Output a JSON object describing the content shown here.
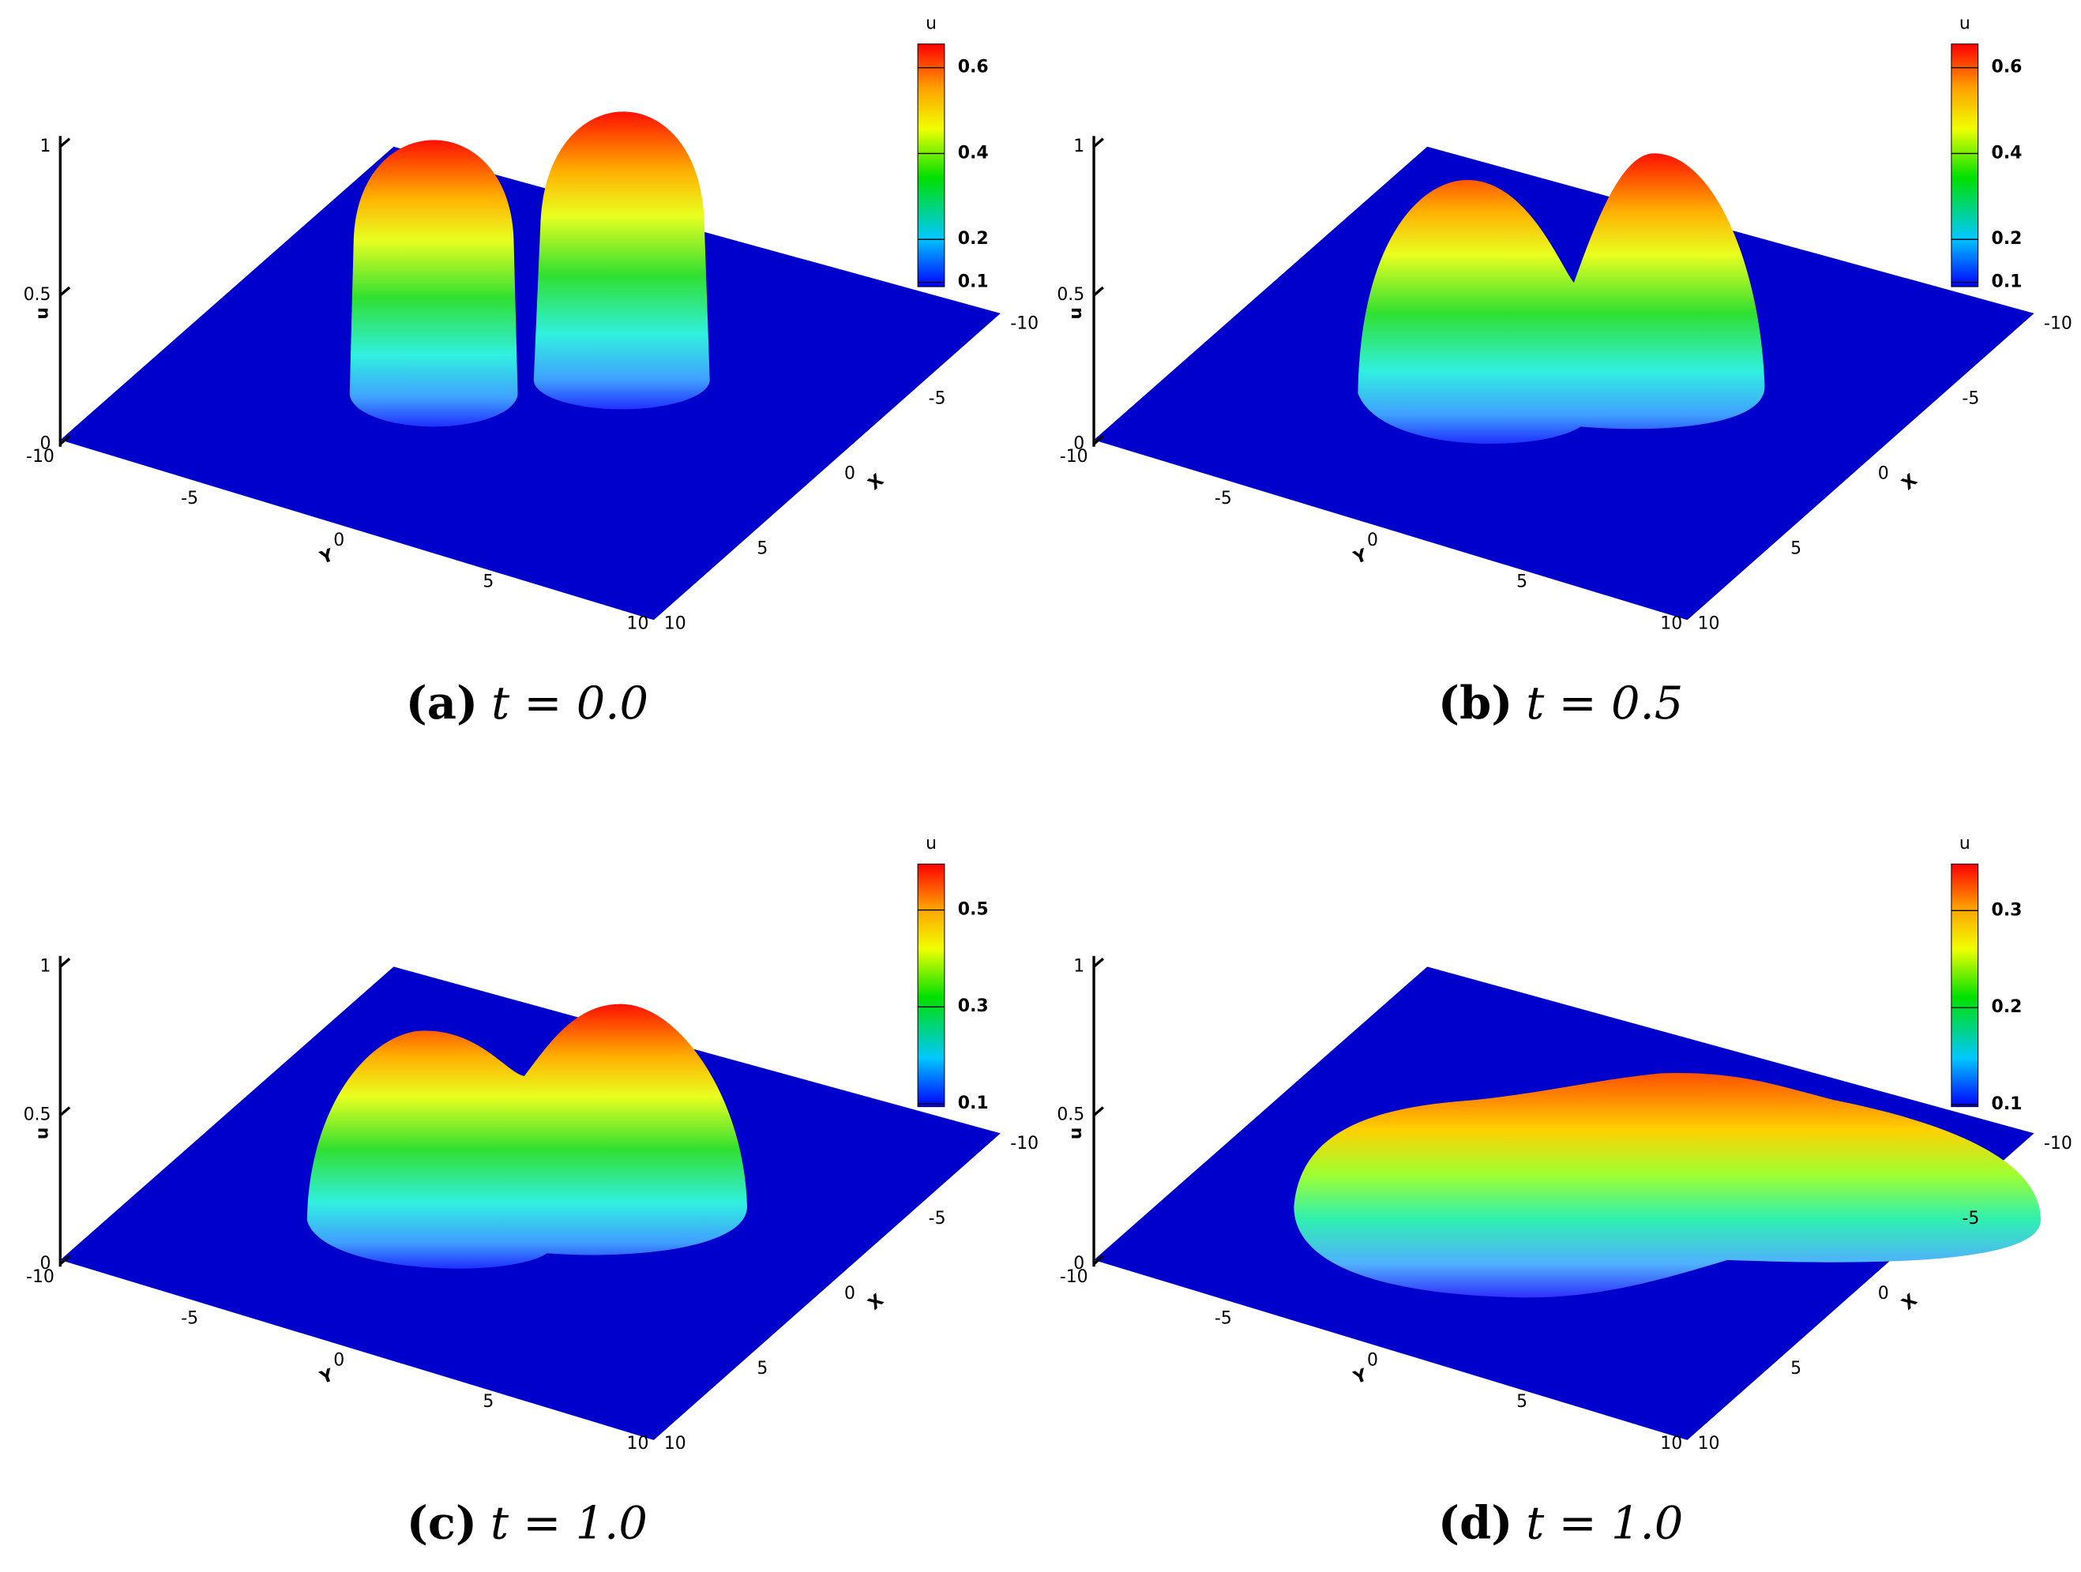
{
  "panels": [
    {
      "caption": {
        "label": "(a)",
        "text": "t = 0.0"
      },
      "colorbar": {
        "title": "u",
        "range": [
          0.09,
          0.655
        ],
        "ticks": [
          0.1,
          0.2,
          0.4,
          0.6
        ]
      },
      "axes": {
        "z": {
          "label": "u",
          "ticks": [
            0,
            0.5,
            1
          ]
        },
        "x": {
          "label": "X",
          "ticks": [
            -10,
            -5,
            0,
            5,
            10
          ]
        },
        "y": {
          "label": "Y",
          "ticks": [
            -10,
            -5,
            0,
            5,
            10
          ]
        }
      }
    },
    {
      "caption": {
        "label": "(b)",
        "text": "t = 0.5"
      },
      "colorbar": {
        "title": "u",
        "range": [
          0.09,
          0.655
        ],
        "ticks": [
          0.1,
          0.2,
          0.4,
          0.6
        ]
      },
      "axes": {
        "z": {
          "label": "u",
          "ticks": [
            0,
            0.5,
            1
          ]
        },
        "x": {
          "label": "X",
          "ticks": [
            -10,
            -5,
            0,
            5,
            10
          ]
        },
        "y": {
          "label": "Y",
          "ticks": [
            -10,
            -5,
            0,
            5,
            10
          ]
        }
      }
    },
    {
      "caption": {
        "label": "(c)",
        "text": "t = 1.0"
      },
      "colorbar": {
        "title": "u",
        "range": [
          0.094,
          0.595
        ],
        "ticks": [
          0.1,
          0.3,
          0.5
        ]
      },
      "axes": {
        "z": {
          "label": "u",
          "ticks": [
            0,
            0.5,
            1
          ]
        },
        "x": {
          "label": "X",
          "ticks": [
            -10,
            -5,
            0,
            5,
            10
          ]
        },
        "y": {
          "label": "Y",
          "ticks": [
            -10,
            -5,
            0,
            5,
            10
          ]
        }
      }
    },
    {
      "caption": {
        "label": "(d)",
        "text": "t = 1.0"
      },
      "colorbar": {
        "title": "u",
        "range": [
          0.098,
          0.348
        ],
        "ticks": [
          0.1,
          0.2,
          0.3
        ]
      },
      "axes": {
        "z": {
          "label": "u",
          "ticks": [
            0,
            0.5,
            1
          ]
        },
        "x": {
          "label": "X",
          "ticks": [
            -10,
            -5,
            0,
            5,
            10
          ]
        },
        "y": {
          "label": "Y",
          "ticks": [
            -10,
            -5,
            0,
            5,
            10
          ]
        }
      }
    }
  ]
}
